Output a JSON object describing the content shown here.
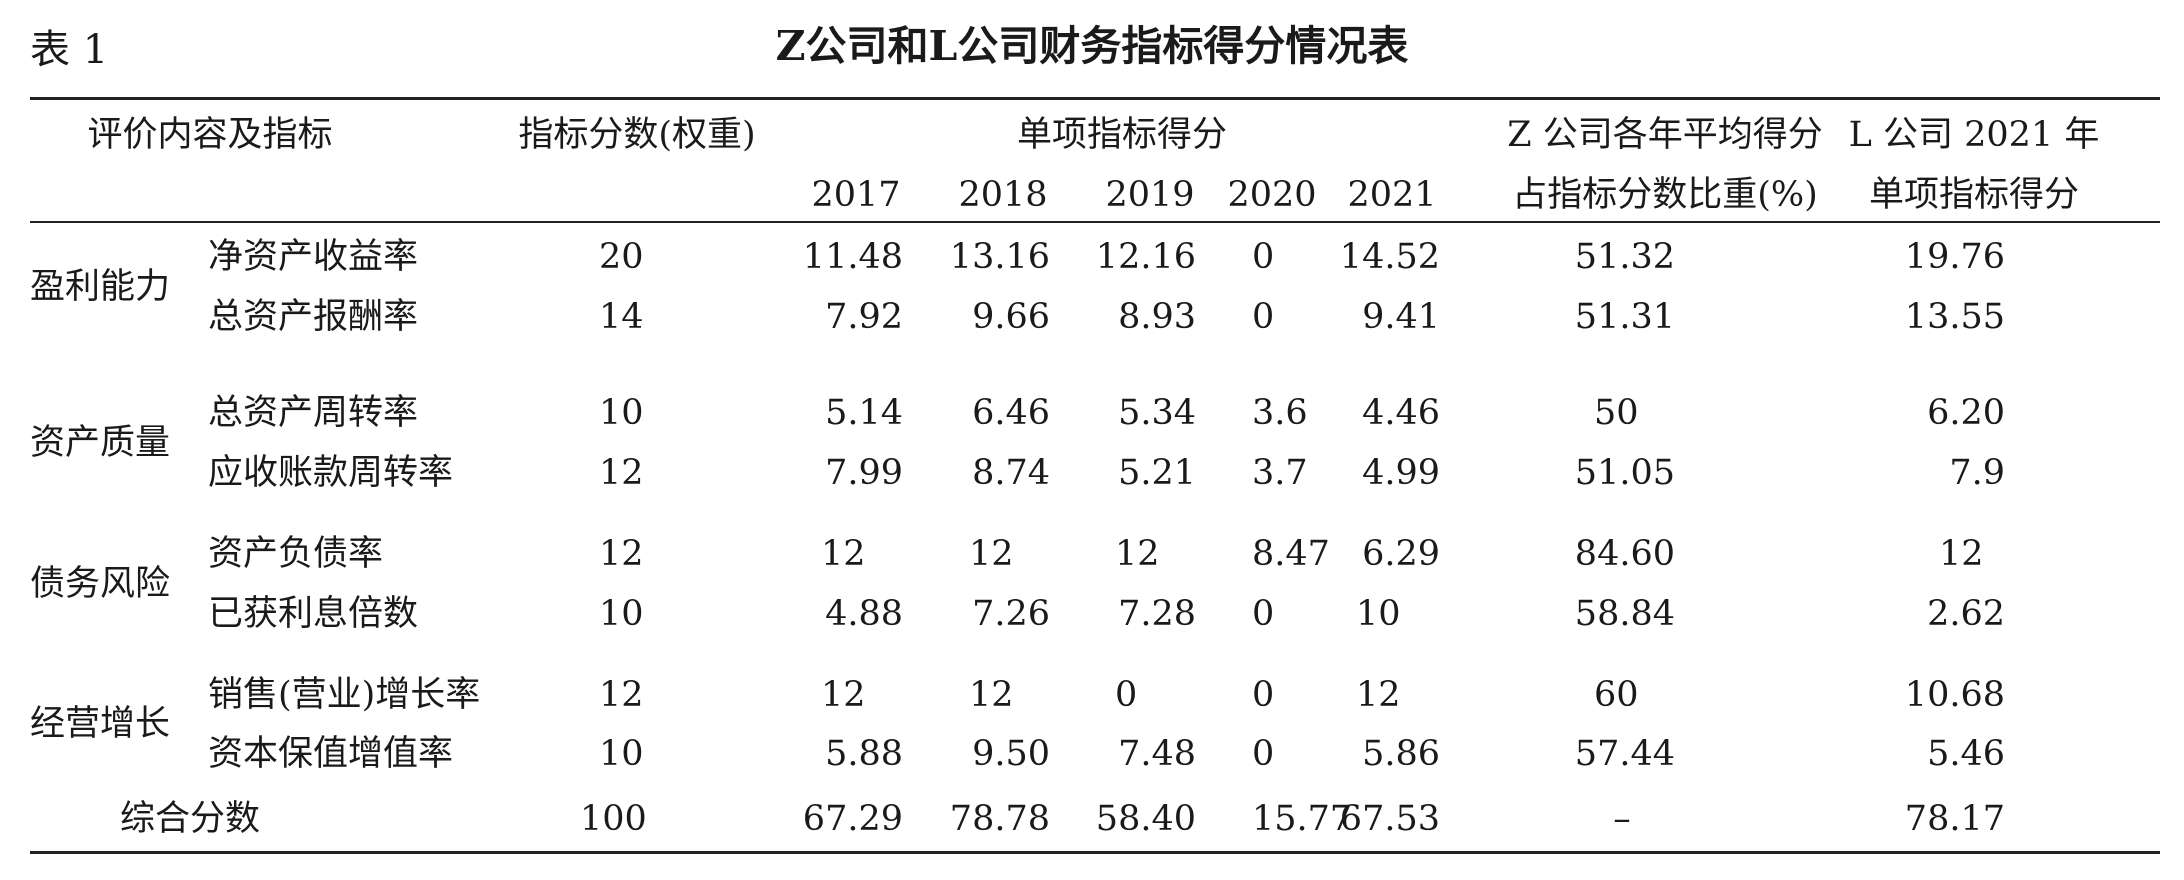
{
  "caption": "表 1",
  "title": "Z公司和L公司财务指标得分情况表",
  "header": {
    "col1": "评价内容及指标",
    "col2": "指标分数(权重)",
    "col3": "单项指标得分",
    "years": [
      "2017",
      "2018",
      "2019",
      "2020",
      "2021"
    ],
    "col4_line1": "Z 公司各年平均得分",
    "col4_line2": "占指标分数比重(%)",
    "col5_line1": "L 公司 2021 年",
    "col5_line2": "单项指标得分"
  },
  "groups": [
    {
      "category": "盈利能力",
      "rows": [
        {
          "indicator": "净资产收益率",
          "weight": "20",
          "scores": [
            "11.48",
            "13.16",
            "12.16",
            "0",
            "14.52"
          ],
          "z_ratio": "51.32",
          "l_score": "19.76"
        },
        {
          "indicator": "总资产报酬率",
          "weight": "14",
          "scores": [
            "7.92",
            "9.66",
            "8.93",
            "0",
            "9.41"
          ],
          "z_ratio": "51.31",
          "l_score": "13.55"
        }
      ]
    },
    {
      "category": "资产质量",
      "rows": [
        {
          "indicator": "总资产周转率",
          "weight": "10",
          "scores": [
            "5.14",
            "6.46",
            "5.34",
            "3.6",
            "4.46"
          ],
          "z_ratio": "50",
          "l_score": "6.20"
        },
        {
          "indicator": "应收账款周转率",
          "weight": "12",
          "scores": [
            "7.99",
            "8.74",
            "5.21",
            "3.7",
            "4.99"
          ],
          "z_ratio": "51.05",
          "l_score": "7.9"
        }
      ]
    },
    {
      "category": "债务风险",
      "rows": [
        {
          "indicator": "资产负债率",
          "weight": "12",
          "scores": [
            "12",
            "12",
            "12",
            "8.47",
            "6.29"
          ],
          "z_ratio": "84.60",
          "l_score": "12"
        },
        {
          "indicator": "已获利息倍数",
          "weight": "10",
          "scores": [
            "4.88",
            "7.26",
            "7.28",
            "0",
            "10"
          ],
          "z_ratio": "58.84",
          "l_score": "2.62"
        }
      ]
    },
    {
      "category": "经营增长",
      "rows": [
        {
          "indicator": "销售(营业)增长率",
          "weight": "12",
          "scores": [
            "12",
            "12",
            "0",
            "0",
            "12"
          ],
          "z_ratio": "60",
          "l_score": "10.68"
        },
        {
          "indicator": "资本保值增值率",
          "weight": "10",
          "scores": [
            "5.88",
            "9.50",
            "7.48",
            "0",
            "5.86"
          ],
          "z_ratio": "57.44",
          "l_score": "5.46"
        }
      ]
    }
  ],
  "total": {
    "label": "综合分数",
    "weight": "100",
    "scores": [
      "67.29",
      "78.78",
      "58.40",
      "15.77",
      "67.53"
    ],
    "z_ratio": "–",
    "l_score": "78.17"
  }
}
